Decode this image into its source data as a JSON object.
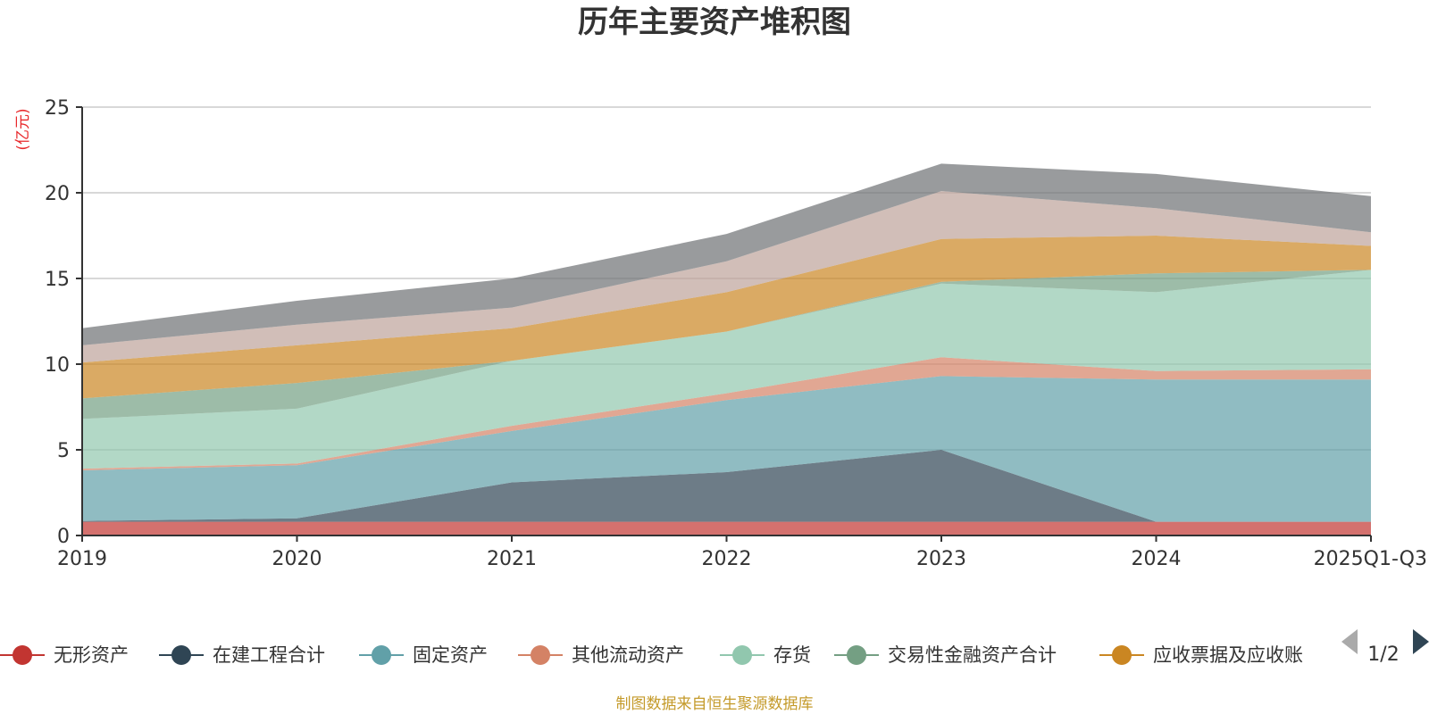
{
  "chart_data": {
    "type": "area",
    "stacked": true,
    "title": "历年主要资产堆积图",
    "ylabel": "(亿元)",
    "xlabel": "",
    "ylim": [
      0,
      25
    ],
    "yticks": [
      "0",
      "5",
      "10",
      "15",
      "20",
      "25"
    ],
    "categories": [
      "2019",
      "2020",
      "2021",
      "2022",
      "2023",
      "2024",
      "2025Q1-Q3"
    ],
    "grid": true,
    "series": [
      {
        "name": "无形资产",
        "color": "#c23531",
        "values": [
          0.8,
          0.8,
          0.8,
          0.8,
          0.8,
          0.8,
          0.8
        ],
        "legend": true
      },
      {
        "name": "在建工程合计",
        "color": "#2f4554",
        "values": [
          0.05,
          0.2,
          2.3,
          2.9,
          4.2,
          0.0,
          0.0
        ],
        "legend": true
      },
      {
        "name": "固定资产",
        "color": "#61a0a8",
        "values": [
          2.95,
          3.1,
          3.0,
          4.2,
          4.3,
          8.3,
          8.3
        ],
        "legend": true
      },
      {
        "name": "其他流动资产",
        "color": "#d48265",
        "values": [
          0.1,
          0.1,
          0.3,
          0.4,
          1.1,
          0.5,
          0.6
        ],
        "legend": true
      },
      {
        "name": "存货",
        "color": "#91c7ae",
        "values": [
          2.9,
          3.2,
          3.8,
          3.6,
          4.3,
          4.6,
          5.8
        ],
        "legend": true
      },
      {
        "name": "交易性金融资产合计",
        "color": "#749f83",
        "values": [
          1.2,
          1.5,
          0.0,
          0.0,
          0.1,
          1.1,
          0.0
        ],
        "legend": true
      },
      {
        "name": "应收票据及应收账",
        "color": "#ca8622",
        "values": [
          2.1,
          2.2,
          1.9,
          2.3,
          2.5,
          2.2,
          1.4
        ],
        "legend": true
      },
      {
        "name": "",
        "color": "#bda29a",
        "values": [
          1.0,
          1.2,
          1.2,
          1.8,
          2.8,
          1.6,
          0.8
        ],
        "legend": false
      },
      {
        "name": "",
        "color": "#6e7074",
        "values": [
          1.0,
          1.4,
          1.7,
          1.6,
          1.6,
          2.0,
          2.1
        ],
        "legend": false
      }
    ],
    "legend": {
      "placement": "bottom",
      "page": "1/2"
    },
    "source_note": "制图数据来自恒生聚源数据库"
  }
}
